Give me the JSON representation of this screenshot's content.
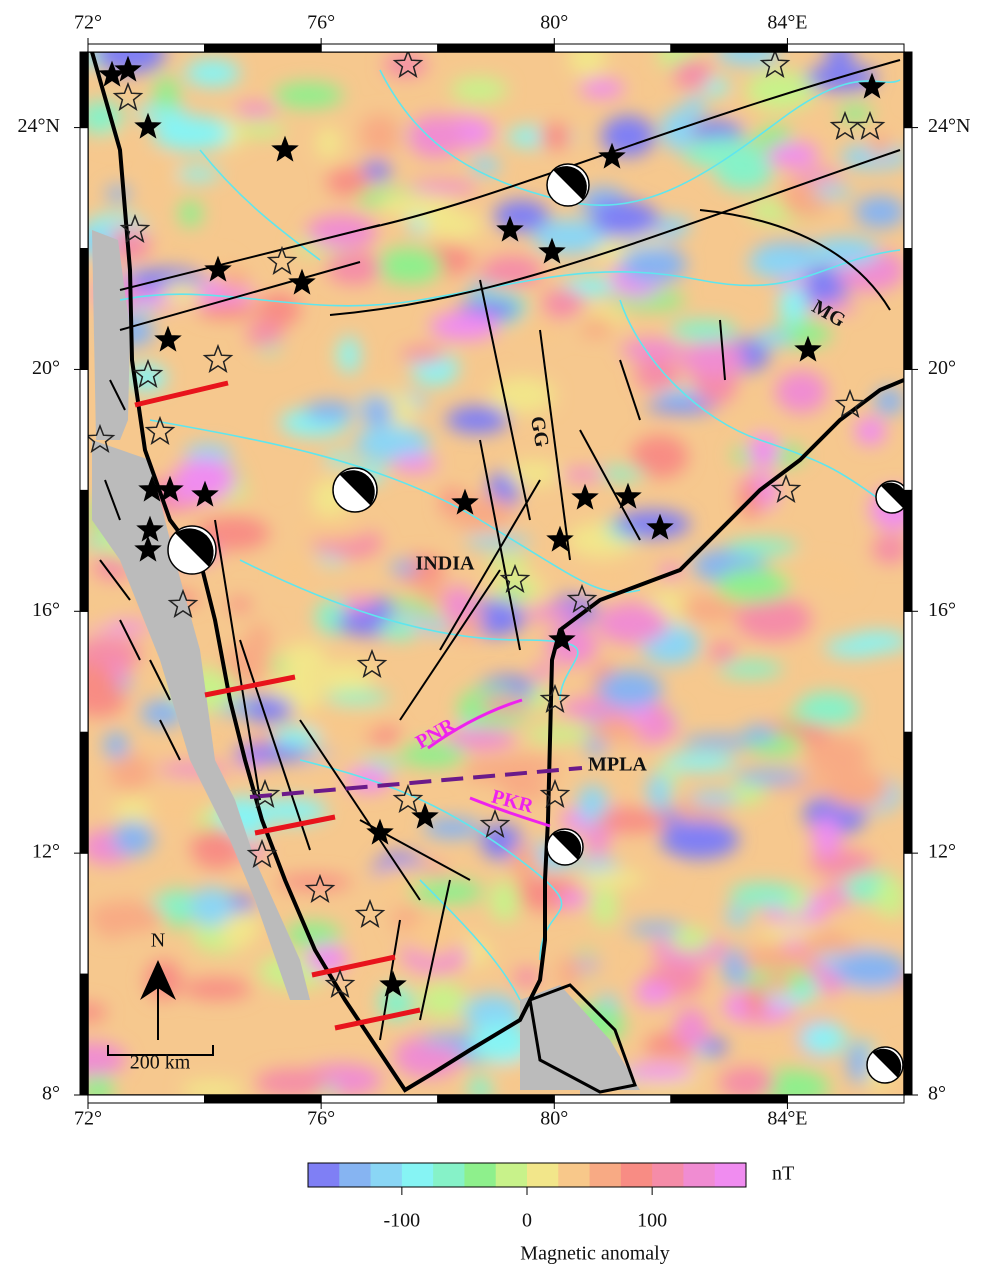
{
  "map": {
    "xlim": [
      72,
      86
    ],
    "ylim": [
      8,
      25.25
    ],
    "xticks": [
      {
        "value": 72,
        "label": "72°"
      },
      {
        "value": 76,
        "label": "76°"
      },
      {
        "value": 80,
        "label": "80°"
      },
      {
        "value": 84,
        "label": "84°E"
      }
    ],
    "yticks": [
      {
        "value": 24,
        "label": "24°N"
      },
      {
        "value": 20,
        "label": "20°"
      },
      {
        "value": 16,
        "label": "16°"
      },
      {
        "value": 12,
        "label": "12°"
      },
      {
        "value": 8,
        "label": "8°"
      }
    ],
    "labels": {
      "india": "INDIA",
      "gg": "GG",
      "mg": "MG",
      "mpla": "MPLA",
      "pnr": "PNR",
      "pkr": "PKR",
      "scale": "200 km",
      "north": "N"
    },
    "colorbar": {
      "lim": [
        -175,
        175
      ],
      "ticks": [
        -100,
        0,
        100
      ],
      "unit": "nT",
      "label": "Magnetic anomaly",
      "colors": [
        "#7f7ff5",
        "#86b4f2",
        "#8ad6f5",
        "#86f4f4",
        "#86f2c8",
        "#8ef08c",
        "#c8f28a",
        "#f2e68a",
        "#f8c88a",
        "#f8aa84",
        "#f88c84",
        "#f58ca8",
        "#f08cd2",
        "#f08cf0"
      ]
    }
  }
}
